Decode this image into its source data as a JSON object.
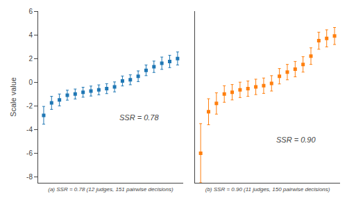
{
  "chart_data": [
    {
      "type": "scatter",
      "marker": "square",
      "x": [
        1,
        2,
        3,
        4,
        5,
        6,
        7,
        8,
        9,
        10,
        11,
        12,
        13,
        14,
        15,
        16,
        17,
        18
      ],
      "values": [
        -2.8,
        -1.75,
        -1.5,
        -1.1,
        -1.0,
        -0.85,
        -0.75,
        -0.65,
        -0.55,
        -0.4,
        0.1,
        0.2,
        0.5,
        1.0,
        1.3,
        1.6,
        1.75,
        2.0
      ],
      "errors": [
        0.75,
        0.55,
        0.5,
        0.42,
        0.42,
        0.42,
        0.42,
        0.42,
        0.42,
        0.42,
        0.42,
        0.42,
        0.45,
        0.45,
        0.48,
        0.52,
        0.52,
        0.55
      ],
      "xlim": [
        0.3,
        18.7
      ],
      "xticks": [],
      "ylim": [
        -8.5,
        6.0
      ],
      "yticks": [
        6,
        4,
        2,
        0,
        -2,
        -4,
        -6,
        -8
      ],
      "ylabel": "Scale value",
      "xlabel": "(a) SSR = 0.78 (12 judges, 151 pairwise decisions)",
      "annotation": "SSR = 0.78",
      "grid": false,
      "tick_labels": "y"
    },
    {
      "type": "scatter",
      "marker": "square",
      "x": [
        1,
        2,
        3,
        4,
        5,
        6,
        7,
        8,
        9,
        10,
        11,
        12,
        13,
        14,
        15,
        16,
        17,
        18
      ],
      "values": [
        -6.0,
        -2.5,
        -1.8,
        -1.0,
        -0.85,
        -0.65,
        -0.55,
        -0.4,
        -0.3,
        -0.1,
        0.5,
        0.85,
        1.1,
        1.5,
        2.2,
        3.5,
        3.7,
        3.9
      ],
      "errors": [
        2.5,
        1.1,
        0.9,
        0.7,
        0.65,
        0.65,
        0.65,
        0.65,
        0.65,
        0.65,
        0.65,
        0.65,
        0.65,
        0.65,
        0.7,
        0.72,
        0.72,
        0.72
      ],
      "xlim": [
        0.3,
        18.7
      ],
      "xticks": [],
      "ylim": [
        -8.5,
        6.0
      ],
      "yticks": [],
      "xlabel": "(b) SSR = 0.90 (11 judges, 150 pairwise decisions)",
      "annotation": "SSR = 0.90",
      "grid": false,
      "tick_labels": false
    }
  ]
}
